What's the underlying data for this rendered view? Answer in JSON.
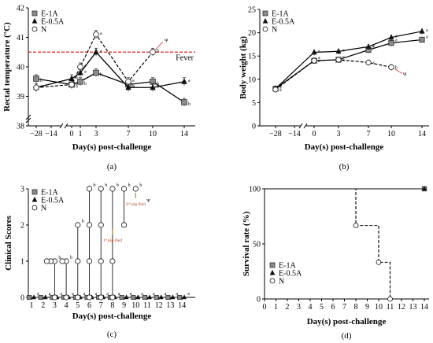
{
  "chart_data": [
    {
      "panel": "(a)",
      "type": "line",
      "xlabel": "Day(s) post-challenge",
      "ylabel": "Rectal temperature (°C)",
      "ylim": [
        38,
        42
      ],
      "y_ticks": [
        "38",
        "39",
        "40",
        "41",
        "42"
      ],
      "x_ticks": [
        "−28",
        "−14",
        "0",
        "1",
        "3",
        "7",
        "10",
        "14"
      ],
      "threshold": {
        "label": "Fever",
        "y": 40.5,
        "color": "#e02020"
      },
      "series": [
        {
          "name": "E-1A",
          "marker": "square",
          "x": [
            -28,
            0,
            1,
            3,
            7,
            10,
            14
          ],
          "y": [
            39.6,
            39.4,
            39.5,
            39.8,
            39.4,
            39.5,
            38.8
          ],
          "labels": [
            "b",
            "b",
            "b",
            "b",
            "b",
            "b",
            "b"
          ]
        },
        {
          "name": "E-0.5A",
          "marker": "triangle",
          "x": [
            -28,
            0,
            1,
            3,
            7,
            10,
            14
          ],
          "y": [
            39.3,
            39.6,
            39.8,
            40.5,
            39.3,
            39.3,
            39.5
          ],
          "labels": [
            "a",
            "a",
            "a",
            "a",
            "a",
            "b",
            "a"
          ]
        },
        {
          "name": "N",
          "marker": "circle",
          "dashed": true,
          "x": [
            -28,
            0,
            1,
            3,
            7,
            10
          ],
          "y": [
            39.3,
            39.4,
            40.0,
            41.1,
            39.5,
            40.5
          ],
          "labels": [
            "a",
            "a",
            "a",
            "a",
            "a",
            "b"
          ]
        }
      ]
    },
    {
      "panel": "(b)",
      "type": "line",
      "xlabel": "Day(s) post-challenge",
      "ylabel": "Body weight (kg)",
      "ylim": [
        0,
        25
      ],
      "y_ticks": [
        "0",
        "5",
        "10",
        "15",
        "20",
        "25"
      ],
      "x_ticks": [
        "−28",
        "−14",
        "0",
        "3",
        "7",
        "10",
        "14"
      ],
      "series": [
        {
          "name": "E-1A",
          "marker": "square",
          "x": [
            -28,
            0,
            3,
            7,
            10,
            14
          ],
          "y": [
            8,
            14,
            14.2,
            16.3,
            17.8,
            18.5
          ],
          "labels": [
            "a",
            "a",
            "a",
            "a",
            "a",
            "a"
          ]
        },
        {
          "name": "E-0.5A",
          "marker": "triangle",
          "x": [
            -28,
            0,
            3,
            7,
            10,
            14
          ],
          "y": [
            8,
            15.8,
            16,
            17,
            19,
            20.3
          ],
          "labels": [
            "a",
            "a",
            "a",
            "a",
            "a",
            "a"
          ]
        },
        {
          "name": "N",
          "marker": "circle",
          "dashed": true,
          "x": [
            -28,
            0,
            3,
            7,
            10
          ],
          "y": [
            7.8,
            14,
            14.2,
            13.6,
            12.6
          ],
          "labels": [
            "a",
            "a",
            "a",
            "a",
            "b"
          ]
        }
      ]
    },
    {
      "panel": "(c)",
      "type": "scatter",
      "xlabel": "Day(s) post-challenge",
      "ylabel": "Clinical Scores",
      "ylim": [
        0,
        3
      ],
      "y_ticks": [
        "0",
        "1",
        "2",
        "3"
      ],
      "x_ticks": [
        "1",
        "2",
        "3",
        "4",
        "5",
        "6",
        "7",
        "8",
        "9",
        "10",
        "11",
        "12",
        "13",
        "14"
      ],
      "annotations": [
        "1ˢᵗ pig died",
        "2ⁿᵈ pig died"
      ],
      "series": [
        {
          "name": "E-1A",
          "marker": "square",
          "x": [
            1,
            2,
            3,
            4,
            5,
            6,
            7,
            8,
            9,
            10,
            11,
            12,
            13,
            14
          ],
          "y": [
            0,
            0,
            0,
            0,
            0,
            0,
            0,
            0,
            0,
            0,
            0,
            0,
            0,
            0
          ]
        },
        {
          "name": "E-0.5A",
          "marker": "triangle",
          "x": [
            1,
            2,
            3,
            4,
            5,
            6,
            7,
            8,
            9,
            10,
            11,
            12,
            13,
            14
          ],
          "y": [
            0,
            0,
            0,
            0,
            0,
            0,
            0,
            0,
            0,
            0,
            0,
            0,
            0,
            0
          ]
        },
        {
          "name": "N",
          "marker": "circle",
          "points": [
            {
              "x": 3,
              "ys": [
                0,
                1,
                1,
                1
              ]
            },
            {
              "x": 4,
              "ys": [
                0,
                1,
                1
              ]
            },
            {
              "x": 5,
              "ys": [
                0,
                1,
                2
              ]
            },
            {
              "x": 6,
              "ys": [
                0,
                1,
                2,
                3
              ]
            },
            {
              "x": 7,
              "ys": [
                0,
                1,
                2,
                3
              ]
            },
            {
              "x": 8,
              "ys": [
                0,
                1,
                3
              ]
            },
            {
              "x": 9,
              "ys": [
                2,
                3
              ]
            },
            {
              "x": 10,
              "ys": [
                3
              ]
            }
          ]
        }
      ]
    },
    {
      "panel": "(d)",
      "type": "line",
      "xlabel": "Day(s) post-challenge",
      "ylabel": "Survival rate (%)",
      "ylim": [
        0,
        100
      ],
      "y_ticks": [
        "0",
        "50",
        "100"
      ],
      "x_ticks": [
        "0",
        "1",
        "2",
        "3",
        "4",
        "5",
        "6",
        "7",
        "8",
        "9",
        "10",
        "11",
        "12",
        "13",
        "14"
      ],
      "series": [
        {
          "name": "E-1A",
          "marker": "square",
          "x": [
            0,
            14
          ],
          "y": [
            100,
            100
          ]
        },
        {
          "name": "E-0.5A",
          "marker": "triangle",
          "x": [
            0,
            14
          ],
          "y": [
            100,
            100
          ]
        },
        {
          "name": "N",
          "marker": "circle",
          "dashed": true,
          "step": true,
          "x": [
            0,
            8,
            10,
            11
          ],
          "y": [
            100,
            66.7,
            33.3,
            0
          ]
        }
      ]
    }
  ]
}
